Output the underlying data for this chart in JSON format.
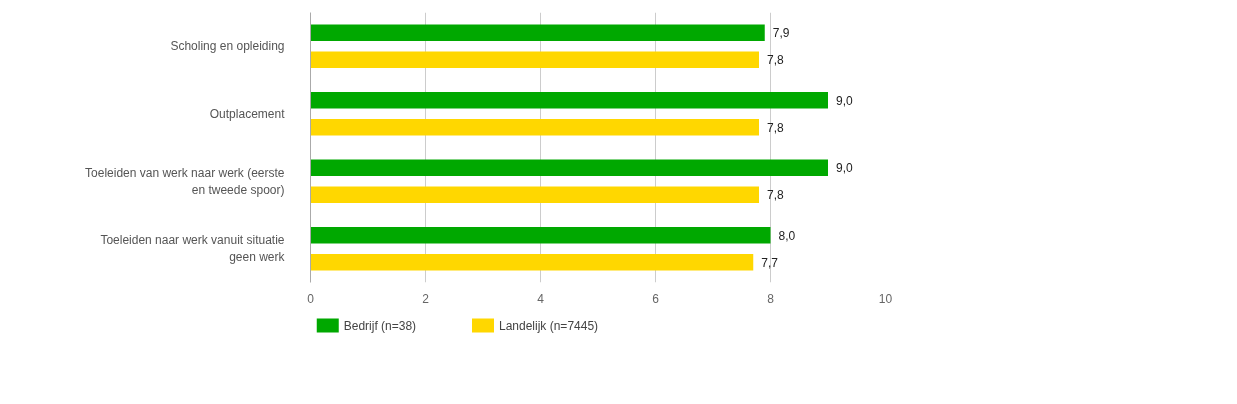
{
  "chart_data": {
    "type": "bar",
    "orientation": "horizontal",
    "categories": [
      "Scholing en opleiding",
      "Outplacement",
      "Toeleiden van werk naar werk (eerste en tweede spoor)",
      "Toeleiden naar werk vanuit situatie geen werk"
    ],
    "series": [
      {
        "name": "Bedrijf (n=38)",
        "color": "#00a800",
        "values": [
          7.9,
          9.0,
          9.0,
          8.0
        ],
        "value_labels": [
          "7,9",
          "9,0",
          "9,0",
          "8,0"
        ]
      },
      {
        "name": "Landelijk (n=7445)",
        "color": "#ffd700",
        "values": [
          7.8,
          7.8,
          7.8,
          7.7
        ],
        "value_labels": [
          "7,8",
          "7,8",
          "7,8",
          "7,7"
        ]
      }
    ],
    "xlim": [
      0,
      10
    ],
    "xticks": [
      0,
      2,
      4,
      6,
      8,
      10
    ],
    "grid": "x",
    "legend": "bottom"
  }
}
